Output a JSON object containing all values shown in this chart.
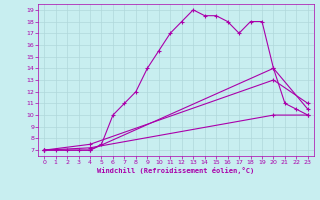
{
  "xlabel": "Windchill (Refroidissement éolien,°C)",
  "xlim": [
    -0.5,
    23.5
  ],
  "ylim": [
    6.5,
    19.5
  ],
  "xticks": [
    0,
    1,
    2,
    3,
    4,
    5,
    6,
    7,
    8,
    9,
    10,
    11,
    12,
    13,
    14,
    15,
    16,
    17,
    18,
    19,
    20,
    21,
    22,
    23
  ],
  "yticks": [
    7,
    8,
    9,
    10,
    11,
    12,
    13,
    14,
    15,
    16,
    17,
    18,
    19
  ],
  "bg_color": "#c8eef0",
  "grid_color": "#b0d8db",
  "line_color": "#aa00aa",
  "line1_x": [
    0,
    1,
    2,
    3,
    4,
    5,
    6,
    7,
    8,
    9,
    10,
    11,
    12,
    13,
    14,
    15,
    16,
    17,
    18,
    19,
    20,
    21,
    22,
    23
  ],
  "line1_y": [
    7,
    7,
    7,
    7,
    7,
    7.5,
    10,
    11,
    12,
    14,
    15.5,
    17,
    18,
    19,
    18.5,
    18.5,
    18,
    17,
    18,
    18,
    14,
    11,
    10.5,
    10
  ],
  "line2_x": [
    0,
    4,
    20,
    23
  ],
  "line2_y": [
    7,
    7,
    14,
    10.5
  ],
  "line3_x": [
    0,
    4,
    20,
    23
  ],
  "line3_y": [
    7,
    7.5,
    13,
    11
  ],
  "line4_x": [
    0,
    4,
    20,
    23
  ],
  "line4_y": [
    7,
    7.2,
    10,
    10
  ]
}
